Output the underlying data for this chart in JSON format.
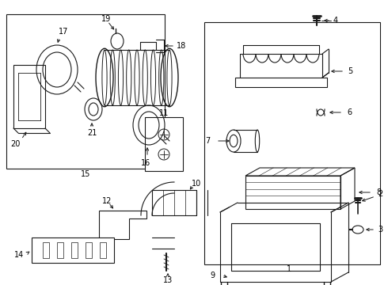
{
  "background": "#ffffff",
  "line_color": "#1a1a1a",
  "label_color": "#000000",
  "fig_w": 4.9,
  "fig_h": 3.6,
  "dpi": 100
}
